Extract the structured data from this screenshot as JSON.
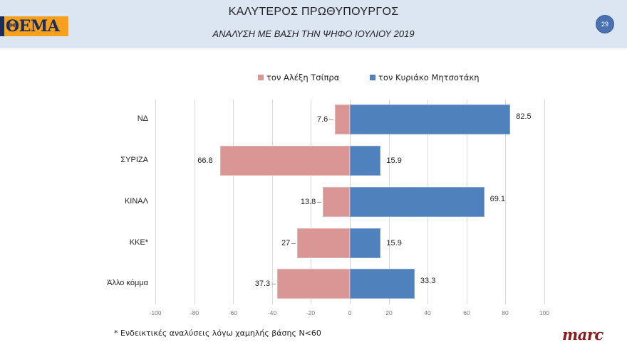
{
  "header": {
    "logo_text": "ΘΕΜΑ",
    "title": "ΚΑΛΥΤΕΡΟΣ ΠΡΩΘΥΠΟΥΡΓΟΣ",
    "subtitle": "ΑΝΑΛΥΣΗ ΜΕ ΒΑΣΗ ΤΗΝ ΨΗΦΟ ΙΟΥΛΙΟΥ 2019",
    "page_number": "29"
  },
  "legend": [
    {
      "label": "τον Αλέξη Τσίπρα",
      "color": "#d99694"
    },
    {
      "label": "τον Κυριάκο Μητσοτάκη",
      "color": "#4f81bd"
    }
  ],
  "footer": {
    "footnote": "* Ενδεικτικές αναλύσεις λόγω χαμηλής βάσης Ν<60",
    "brand": "marc"
  },
  "chart_data": {
    "type": "bar",
    "orientation": "horizontal",
    "stacked": "diverging",
    "title": "ΚΑΛΥΤΕΡΟΣ ΠΡΩΘΥΠΟΥΡΓΟΣ",
    "subtitle": "ΑΝΑΛΥΣΗ ΜΕ ΒΑΣΗ ΤΗΝ ΨΗΦΟ ΙΟΥΛΙΟΥ 2019",
    "categories": [
      "ΝΔ",
      "ΣΥΡΙΖΑ",
      "ΚΙΝΑΛ",
      "ΚΚΕ*",
      "Άλλο κόμμα"
    ],
    "series": [
      {
        "name": "τον Αλέξη Τσίπρα",
        "color": "#d99694",
        "direction": "negative",
        "values": [
          7.6,
          66.8,
          13.8,
          27,
          37.3
        ]
      },
      {
        "name": "τον Κυριάκο Μητσοτάκη",
        "color": "#4f81bd",
        "direction": "positive",
        "values": [
          82.5,
          15.9,
          69.1,
          15.9,
          33.3
        ]
      }
    ],
    "xlabel": "",
    "ylabel": "",
    "xlim": [
      -100,
      100
    ],
    "xticks": [
      "-100",
      "-80",
      "-60",
      "-40",
      "-20",
      "0",
      "20",
      "40",
      "60",
      "80",
      "100"
    ],
    "grid": true,
    "legend_position": "top",
    "footnote": "* Ενδεικτικές αναλύσεις λόγω χαμηλής βάσης Ν<60"
  }
}
